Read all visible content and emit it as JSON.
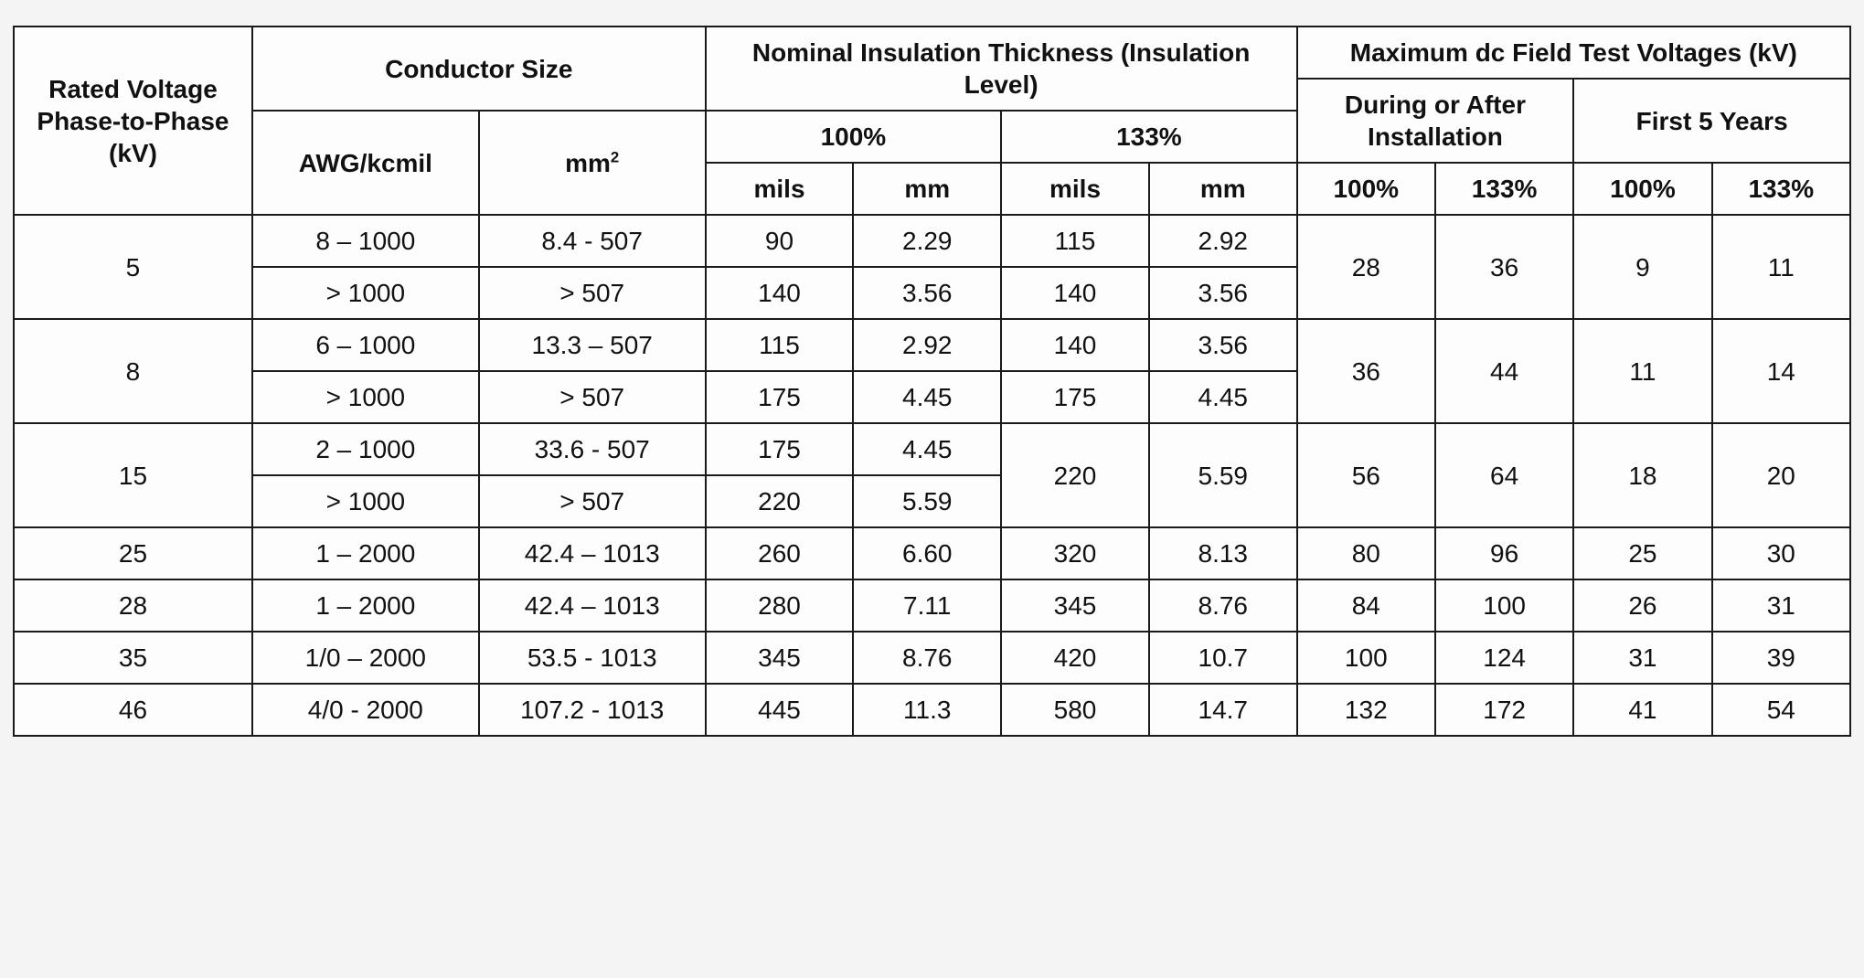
{
  "table": {
    "border_color": "#1a1a1a",
    "background_color": "#fdfdfd",
    "header_font_weight": 700,
    "body_font_weight": 400,
    "font_family": "Helvetica Neue, Helvetica, Arial, sans-serif",
    "font_size_pt": 21,
    "headers": {
      "rated_voltage": "Rated Voltage Phase-to-Phase (kV)",
      "conductor_size": "Conductor Size",
      "conductor_awg": "AWG/kcmil",
      "conductor_mm2_prefix": "mm",
      "conductor_mm2_exp": "2",
      "nominal_insulation": "Nominal Insulation Thickness (Insulation Level)",
      "ins_100": "100%",
      "ins_133": "133%",
      "unit_mils": "mils",
      "unit_mm": "mm",
      "max_dc": "Maximum dc Field Test Voltages (kV)",
      "during_install": "During or After Installation",
      "first_5_years": "First 5 Years",
      "pct_100": "100%",
      "pct_133": "133%"
    },
    "rows": {
      "v5a": {
        "voltage": "5",
        "awg": "8 – 1000",
        "mm2": "8.4 - 507",
        "mils100": "90",
        "mm100": "2.29",
        "mils133": "115",
        "mm133": "2.92"
      },
      "v5b": {
        "awg": "> 1000",
        "mm2": "> 507",
        "mils100": "140",
        "mm100": "3.56",
        "mils133": "140",
        "mm133": "3.56"
      },
      "v5t": {
        "inst100": "28",
        "inst133": "36",
        "y5_100": "9",
        "y5_133": "11"
      },
      "v8a": {
        "voltage": "8",
        "awg": "6 – 1000",
        "mm2": "13.3 – 507",
        "mils100": "115",
        "mm100": "2.92",
        "mils133": "140",
        "mm133": "3.56"
      },
      "v8b": {
        "awg": "> 1000",
        "mm2": "> 507",
        "mils100": "175",
        "mm100": "4.45",
        "mils133": "175",
        "mm133": "4.45"
      },
      "v8t": {
        "inst100": "36",
        "inst133": "44",
        "y5_100": "11",
        "y5_133": "14"
      },
      "v15a": {
        "voltage": "15",
        "awg": "2 – 1000",
        "mm2": "33.6 - 507",
        "mils100": "175",
        "mm100": "4.45"
      },
      "v15b": {
        "awg": "> 1000",
        "mm2": "> 507",
        "mils100": "220",
        "mm100": "5.59"
      },
      "v15_133": {
        "mils133": "220",
        "mm133": "5.59"
      },
      "v15t": {
        "inst100": "56",
        "inst133": "64",
        "y5_100": "18",
        "y5_133": "20"
      },
      "v25": {
        "voltage": "25",
        "awg": "1 – 2000",
        "mm2": "42.4 – 1013",
        "mils100": "260",
        "mm100": "6.60",
        "mils133": "320",
        "mm133": "8.13",
        "inst100": "80",
        "inst133": "96",
        "y5_100": "25",
        "y5_133": "30"
      },
      "v28": {
        "voltage": "28",
        "awg": "1 – 2000",
        "mm2": "42.4 – 1013",
        "mils100": "280",
        "mm100": "7.11",
        "mils133": "345",
        "mm133": "8.76",
        "inst100": "84",
        "inst133": "100",
        "y5_100": "26",
        "y5_133": "31"
      },
      "v35": {
        "voltage": "35",
        "awg": "1/0 – 2000",
        "mm2": "53.5 - 1013",
        "mils100": "345",
        "mm100": "8.76",
        "mils133": "420",
        "mm133": "10.7",
        "inst100": "100",
        "inst133": "124",
        "y5_100": "31",
        "y5_133": "39"
      },
      "v46": {
        "voltage": "46",
        "awg": "4/0 - 2000",
        "mm2": "107.2 - 1013",
        "mils100": "445",
        "mm100": "11.3",
        "mils133": "580",
        "mm133": "14.7",
        "inst100": "132",
        "inst133": "172",
        "y5_100": "41",
        "y5_133": "54"
      }
    }
  }
}
